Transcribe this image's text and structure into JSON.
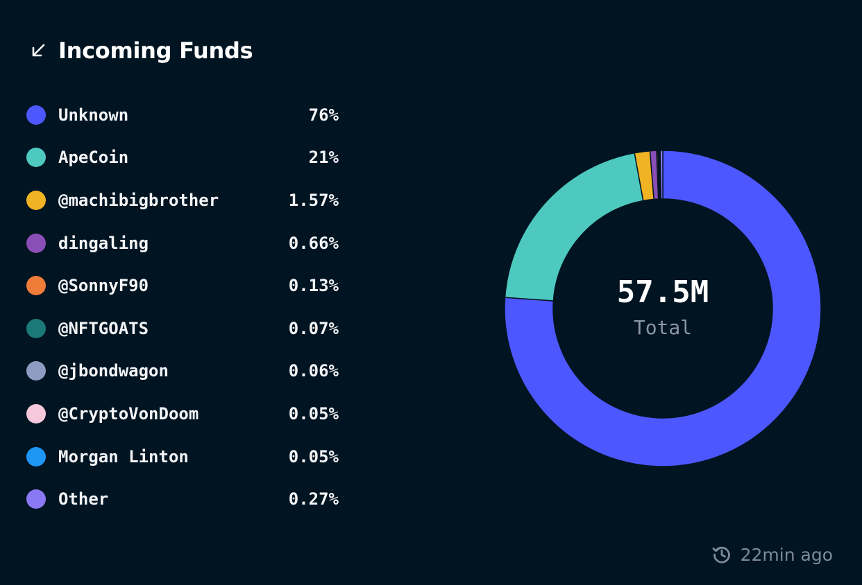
{
  "header": {
    "title": "Incoming Funds",
    "icon": "arrow-down-left-icon"
  },
  "legend": [
    {
      "label": "Unknown",
      "value": "76%",
      "color": "#4c57ff"
    },
    {
      "label": "ApeCoin",
      "value": "21%",
      "color": "#4ec9bf"
    },
    {
      "label": "@machibigbrother",
      "value": "1.57%",
      "color": "#f0b323"
    },
    {
      "label": "dingaling",
      "value": "0.66%",
      "color": "#8a4fb6"
    },
    {
      "label": "@SonnyF90",
      "value": "0.13%",
      "color": "#f07c3a"
    },
    {
      "label": "@NFTGOATS",
      "value": "0.07%",
      "color": "#1b7a78"
    },
    {
      "label": "@jbondwagon",
      "value": "0.06%",
      "color": "#8f9cc2"
    },
    {
      "label": "@CryptoVonDoom",
      "value": "0.05%",
      "color": "#f6c8dc"
    },
    {
      "label": "Morgan Linton",
      "value": "0.05%",
      "color": "#1e96f3"
    },
    {
      "label": "Other",
      "value": "0.27%",
      "color": "#8b78f5"
    }
  ],
  "chart_data": {
    "type": "pie",
    "labels": [
      "Unknown",
      "ApeCoin",
      "@machibigbrother",
      "dingaling",
      "@SonnyF90",
      "@NFTGOATS",
      "@jbondwagon",
      "@CryptoVonDoom",
      "Morgan Linton",
      "Other"
    ],
    "values": [
      76,
      21,
      1.57,
      0.66,
      0.13,
      0.07,
      0.06,
      0.05,
      0.05,
      0.27
    ],
    "colors": [
      "#4c57ff",
      "#4ec9bf",
      "#f0b323",
      "#8a4fb6",
      "#f07c3a",
      "#1b7a78",
      "#8f9cc2",
      "#f6c8dc",
      "#1e96f3",
      "#8b78f5"
    ],
    "center_value": "57.5M",
    "center_label": "Total"
  },
  "footer": {
    "updated": "22min ago",
    "icon": "clock-refresh-icon"
  }
}
